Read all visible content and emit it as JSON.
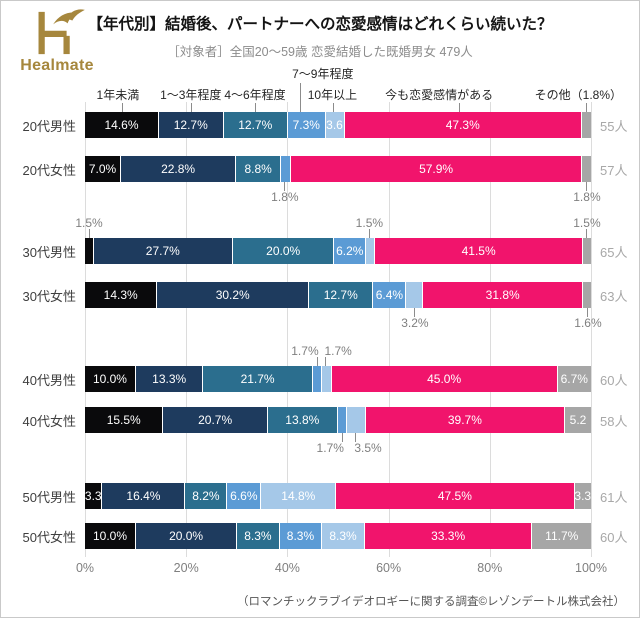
{
  "logo": {
    "brand": "Healmate"
  },
  "header": {
    "title": "【年代別】結婚後、パートナーへの恋愛感情はどれくらい続いた？",
    "subtitle": "［対象者］全国20～59歳 恋愛結婚した既婚男女 479人"
  },
  "footer": {
    "source": "（ロマンチックラブイデオロギーに関する調査©レゾンデートル株式会社）"
  },
  "chart_data": {
    "type": "bar",
    "stacked": true,
    "orientation": "horizontal",
    "unit": "%",
    "xlim": [
      0,
      100
    ],
    "xticks": [
      "0%",
      "20%",
      "40%",
      "60%",
      "80%",
      "100%"
    ],
    "grid": true,
    "legend_position": "top",
    "legend": [
      {
        "key": "lt1",
        "label": "1年未満",
        "color": "#0a0a0c",
        "center": 6.5,
        "tick": 7.3,
        "row": 1,
        "tall": false
      },
      {
        "key": "y13",
        "label": "1～3年程度",
        "color": "#1e3b5e",
        "center": 20.9,
        "tick": 20.9,
        "row": 1,
        "tall": false
      },
      {
        "key": "y46",
        "label": "4～6年程度",
        "color": "#2b6e8e",
        "center": 33.6,
        "tick": 33.6,
        "row": 1,
        "tall": false
      },
      {
        "key": "y79",
        "label": "7～9年程度",
        "color": "#5b9bd5",
        "center": 47.0,
        "tick": 42.5,
        "row": 2,
        "tall": true
      },
      {
        "key": "y10",
        "label": "10年以上",
        "color": "#a5c8e8",
        "center": 48.9,
        "tick": 49.1,
        "row": 1,
        "tall": false
      },
      {
        "key": "now",
        "label": "今も恋愛感情がある",
        "color": "#f1146c",
        "center": 70.0,
        "tick": 74.0,
        "row": 1,
        "tall": false
      },
      {
        "key": "oth",
        "label": "その他（1.8%）",
        "color": "#a6a6a6",
        "center": 97.5,
        "tick": 99.1,
        "row": 1,
        "tall": false
      }
    ],
    "rows": [
      {
        "category": "20代男性",
        "count": "55人",
        "gap_after": 18,
        "segments": [
          {
            "k": "lt1",
            "v": 14.6,
            "t": "14.6%"
          },
          {
            "k": "y13",
            "v": 12.7,
            "t": "12.7%"
          },
          {
            "k": "y46",
            "v": 12.7,
            "t": "12.7%"
          },
          {
            "k": "y79",
            "v": 7.3,
            "t": "7.3%"
          },
          {
            "k": "y10",
            "v": 3.6,
            "t": "3.6"
          },
          {
            "k": "now",
            "v": 47.3,
            "t": "47.3%"
          },
          {
            "k": "oth",
            "v": 1.8,
            "t": ""
          }
        ],
        "callouts": []
      },
      {
        "category": "20代女性",
        "count": "57人",
        "gap_after": 56,
        "segments": [
          {
            "k": "lt1",
            "v": 7.0,
            "t": "7.0%"
          },
          {
            "k": "y13",
            "v": 22.8,
            "t": "22.8%"
          },
          {
            "k": "y46",
            "v": 8.8,
            "t": "8.8%"
          },
          {
            "k": "y79",
            "v": 1.8,
            "t": ""
          },
          {
            "k": "now",
            "v": 57.9,
            "t": "57.9%"
          },
          {
            "k": "oth",
            "v": 1.8,
            "t": ""
          }
        ],
        "callouts": [
          {
            "pos": "below",
            "left": 39.5,
            "text": "1.8%"
          },
          {
            "pos": "below",
            "left": 99.2,
            "text": "1.8%"
          }
        ]
      },
      {
        "category": "30代男性",
        "count": "65人",
        "gap_after": 18,
        "segments": [
          {
            "k": "lt1",
            "v": 1.5,
            "t": ""
          },
          {
            "k": "y13",
            "v": 27.7,
            "t": "27.7%"
          },
          {
            "k": "y46",
            "v": 20.0,
            "t": "20.0%"
          },
          {
            "k": "y79",
            "v": 6.2,
            "t": "6.2%"
          },
          {
            "k": "y10",
            "v": 1.5,
            "t": ""
          },
          {
            "k": "now",
            "v": 41.5,
            "t": "41.5%"
          },
          {
            "k": "oth",
            "v": 1.5,
            "t": ""
          }
        ],
        "callouts": [
          {
            "pos": "above",
            "left": 0.8,
            "text": "1.5%"
          },
          {
            "pos": "above",
            "left": 56.2,
            "text": "1.5%"
          },
          {
            "pos": "above",
            "left": 99.2,
            "text": "1.5%"
          }
        ]
      },
      {
        "category": "30代女性",
        "count": "63人",
        "gap_after": 58,
        "segments": [
          {
            "k": "lt1",
            "v": 14.3,
            "t": "14.3%"
          },
          {
            "k": "y13",
            "v": 30.2,
            "t": "30.2%"
          },
          {
            "k": "y46",
            "v": 12.7,
            "t": "12.7%"
          },
          {
            "k": "y79",
            "v": 6.4,
            "t": "6.4%"
          },
          {
            "k": "y10",
            "v": 3.2,
            "t": ""
          },
          {
            "k": "now",
            "v": 31.8,
            "t": "31.8%"
          },
          {
            "k": "oth",
            "v": 1.6,
            "t": ""
          }
        ],
        "callouts": [
          {
            "pos": "below",
            "left": 65.2,
            "text": "3.2%"
          },
          {
            "pos": "below",
            "left": 99.4,
            "text": "1.6%"
          }
        ]
      },
      {
        "category": "40代男性",
        "count": "60人",
        "gap_after": 15,
        "segments": [
          {
            "k": "lt1",
            "v": 10.0,
            "t": "10.0%"
          },
          {
            "k": "y13",
            "v": 13.3,
            "t": "13.3%"
          },
          {
            "k": "y46",
            "v": 21.7,
            "t": "21.7%"
          },
          {
            "k": "y79",
            "v": 1.7,
            "t": ""
          },
          {
            "k": "y10",
            "v": 1.7,
            "t": ""
          },
          {
            "k": "now",
            "v": 45.0,
            "t": "45.0%"
          },
          {
            "k": "oth",
            "v": 6.7,
            "t": "6.7%"
          }
        ],
        "callouts": [
          {
            "pos": "above",
            "left": 45.9,
            "text": "1.7%",
            "tx": "-95%"
          },
          {
            "pos": "above",
            "left": 47.6,
            "text": "1.7%",
            "tx": "-5%"
          }
        ]
      },
      {
        "category": "40代女性",
        "count": "58人",
        "gap_after": 50,
        "segments": [
          {
            "k": "lt1",
            "v": 15.5,
            "t": "15.5%"
          },
          {
            "k": "y13",
            "v": 20.7,
            "t": "20.7%"
          },
          {
            "k": "y46",
            "v": 13.8,
            "t": "13.8%"
          },
          {
            "k": "y79",
            "v": 1.7,
            "t": ""
          },
          {
            "k": "y10",
            "v": 3.5,
            "t": ""
          },
          {
            "k": "now",
            "v": 39.7,
            "t": "39.7%"
          },
          {
            "k": "oth",
            "v": 5.2,
            "t": "5.2"
          }
        ],
        "callouts": [
          {
            "pos": "below",
            "left": 50.9,
            "text": "1.7%",
            "tx": "-95%"
          },
          {
            "pos": "below",
            "left": 53.5,
            "text": "3.5%",
            "tx": "-5%"
          }
        ]
      },
      {
        "category": "50代男性",
        "count": "61人",
        "gap_after": 14,
        "segments": [
          {
            "k": "lt1",
            "v": 3.3,
            "t": "3.3"
          },
          {
            "k": "y13",
            "v": 16.4,
            "t": "16.4%"
          },
          {
            "k": "y46",
            "v": 8.2,
            "t": "8.2%"
          },
          {
            "k": "y79",
            "v": 6.6,
            "t": "6.6%"
          },
          {
            "k": "y10",
            "v": 14.8,
            "t": "14.8%"
          },
          {
            "k": "now",
            "v": 47.5,
            "t": "47.5%"
          },
          {
            "k": "oth",
            "v": 3.3,
            "t": "3.3"
          }
        ],
        "callouts": []
      },
      {
        "category": "50代女性",
        "count": "60人",
        "gap_after": 0,
        "segments": [
          {
            "k": "lt1",
            "v": 10.0,
            "t": "10.0%"
          },
          {
            "k": "y13",
            "v": 20.0,
            "t": "20.0%"
          },
          {
            "k": "y46",
            "v": 8.3,
            "t": "8.3%"
          },
          {
            "k": "y79",
            "v": 8.3,
            "t": "8.3%"
          },
          {
            "k": "y10",
            "v": 8.3,
            "t": "8.3%"
          },
          {
            "k": "now",
            "v": 33.3,
            "t": "33.3%"
          },
          {
            "k": "oth",
            "v": 11.7,
            "t": "11.7%"
          }
        ],
        "callouts": []
      }
    ]
  }
}
